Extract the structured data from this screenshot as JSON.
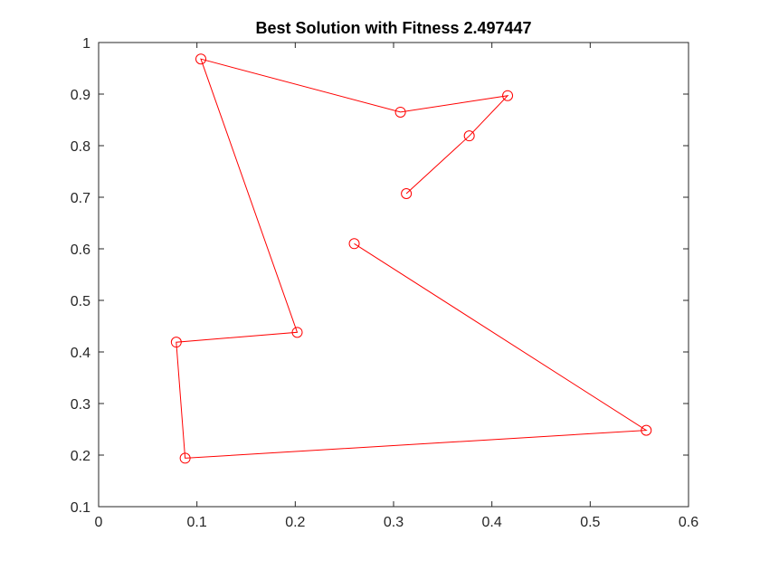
{
  "chart_data": {
    "type": "line",
    "title": "Best Solution with Fitness 2.497447",
    "xlabel": "",
    "ylabel": "",
    "xlim": [
      0,
      0.6
    ],
    "ylim": [
      0.1,
      1
    ],
    "xticks": [
      "0",
      "0.1",
      "0.2",
      "0.3",
      "0.4",
      "0.5",
      "0.6"
    ],
    "yticks": [
      "0.1",
      "0.2",
      "0.3",
      "0.4",
      "0.5",
      "0.6",
      "0.7",
      "0.8",
      "0.9",
      "1"
    ],
    "grid": false,
    "legend": "none",
    "series": [
      {
        "color": "#ff0000",
        "marker": "circle",
        "points": [
          {
            "x": 0.313,
            "y": 0.707
          },
          {
            "x": 0.377,
            "y": 0.819
          },
          {
            "x": 0.416,
            "y": 0.897
          },
          {
            "x": 0.307,
            "y": 0.865
          },
          {
            "x": 0.104,
            "y": 0.968
          },
          {
            "x": 0.202,
            "y": 0.438
          },
          {
            "x": 0.079,
            "y": 0.419
          },
          {
            "x": 0.088,
            "y": 0.194
          },
          {
            "x": 0.557,
            "y": 0.248
          },
          {
            "x": 0.26,
            "y": 0.61
          }
        ]
      }
    ]
  }
}
